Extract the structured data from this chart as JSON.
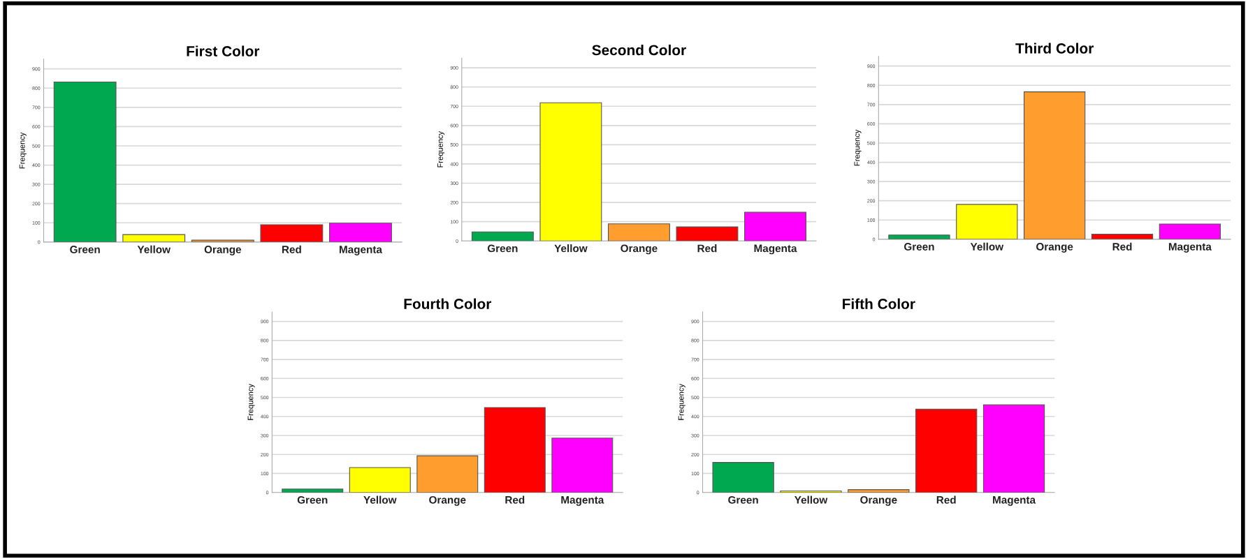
{
  "chart_data": [
    {
      "type": "bar",
      "title": "First Color",
      "ylabel": "Frequency",
      "categories": [
        "Green",
        "Yellow",
        "Orange",
        "Red",
        "Magenta"
      ],
      "values": [
        832,
        39,
        10,
        90,
        98
      ],
      "colors": [
        "#00a84f",
        "#ffff00",
        "#ff9d2e",
        "#ff0000",
        "#ff00ff"
      ],
      "ylim": [
        0,
        950
      ],
      "yticks": [
        0,
        100,
        200,
        300,
        400,
        500,
        600,
        700,
        800,
        900
      ],
      "grid": "y"
    },
    {
      "type": "bar",
      "title": "Second Color",
      "ylabel": "Frequency",
      "categories": [
        "Green",
        "Yellow",
        "Orange",
        "Red",
        "Magenta"
      ],
      "values": [
        47,
        718,
        89,
        73,
        149
      ],
      "colors": [
        "#00a84f",
        "#ffff00",
        "#ff9d2e",
        "#ff0000",
        "#ff00ff"
      ],
      "ylim": [
        0,
        950
      ],
      "yticks": [
        0,
        100,
        200,
        300,
        400,
        500,
        600,
        700,
        800,
        900
      ],
      "grid": "y"
    },
    {
      "type": "bar",
      "title": "Third Color",
      "ylabel": "Frequency",
      "categories": [
        "Green",
        "Yellow",
        "Orange",
        "Red",
        "Magenta"
      ],
      "values": [
        22,
        181,
        766,
        26,
        79
      ],
      "colors": [
        "#00a84f",
        "#ffff00",
        "#ff9d2e",
        "#ff0000",
        "#ff00ff"
      ],
      "ylim": [
        0,
        950
      ],
      "yticks": [
        0,
        100,
        200,
        300,
        400,
        500,
        600,
        700,
        800,
        900
      ],
      "grid": "y"
    },
    {
      "type": "bar",
      "title": "Fourth Color",
      "ylabel": "Frequency",
      "categories": [
        "Green",
        "Yellow",
        "Orange",
        "Red",
        "Magenta"
      ],
      "values": [
        18,
        131,
        193,
        447,
        286
      ],
      "colors": [
        "#00a84f",
        "#ffff00",
        "#ff9d2e",
        "#ff0000",
        "#ff00ff"
      ],
      "ylim": [
        0,
        950
      ],
      "yticks": [
        0,
        100,
        200,
        300,
        400,
        500,
        600,
        700,
        800,
        900
      ],
      "grid": "y"
    },
    {
      "type": "bar",
      "title": "Fifth Color",
      "ylabel": "Frequency",
      "categories": [
        "Green",
        "Yellow",
        "Orange",
        "Red",
        "Magenta"
      ],
      "values": [
        158,
        8,
        15,
        438,
        461
      ],
      "colors": [
        "#00a84f",
        "#ffff00",
        "#ff9d2e",
        "#ff0000",
        "#ff00ff"
      ],
      "ylim": [
        0,
        950
      ],
      "yticks": [
        0,
        100,
        200,
        300,
        400,
        500,
        600,
        700,
        800,
        900
      ],
      "grid": "y"
    }
  ]
}
